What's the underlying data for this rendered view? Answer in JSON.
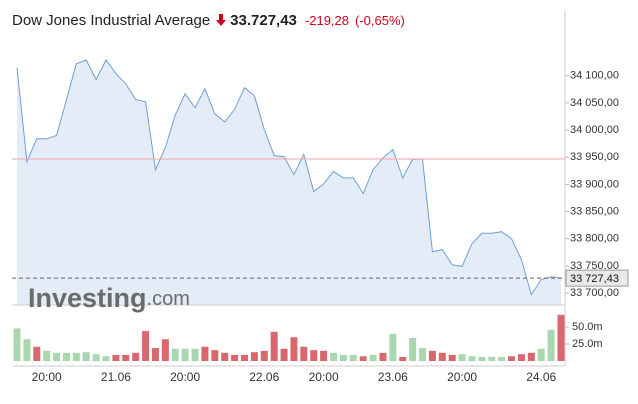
{
  "chart_data": [
    {
      "type": "line",
      "title": "Dow Jones Industrial Average",
      "price": "33.727,43",
      "change": "-219,28",
      "change_percent": "(-0,65%)",
      "watermark": [
        "Investing",
        ".com"
      ],
      "color": "#6f9fd1",
      "fill": "#e4edf7",
      "values": [
        34115,
        33942,
        33984,
        33984,
        33990,
        34056,
        34122,
        34129,
        34093,
        34129,
        34104,
        34085,
        34056,
        34052,
        33927,
        33968,
        34028,
        34067,
        34041,
        34076,
        34030,
        34015,
        34038,
        34078,
        34063,
        34001,
        33953,
        33951,
        33918,
        33955,
        33887,
        33901,
        33924,
        33912,
        33912,
        33883,
        33927,
        33949,
        33964,
        33912,
        33946,
        33947,
        33776,
        33780,
        33752,
        33749,
        33791,
        33810,
        33810,
        33813,
        33800,
        33762,
        33697,
        33725,
        33730,
        33727.43
      ],
      "reference_line": 33946.71,
      "reference_color": "#f2a5a5",
      "last_price": {
        "value": 33727.43,
        "label": "33 727,43"
      },
      "ylim": [
        33678,
        34175
      ],
      "yticks": [
        {
          "value": 33700,
          "label": "33 700,00"
        },
        {
          "value": 33750,
          "label": "33 750,00"
        },
        {
          "value": 33800,
          "label": "33 800,00"
        },
        {
          "value": 33850,
          "label": "33 850,00"
        },
        {
          "value": 33900,
          "label": "33 900,00"
        },
        {
          "value": 33950,
          "label": "33 950,00"
        },
        {
          "value": 34000,
          "label": "34 000,00"
        },
        {
          "value": 34050,
          "label": "34 050,00"
        },
        {
          "value": 34100,
          "label": "34 100,00"
        }
      ]
    },
    {
      "type": "bar",
      "categories": [
        null,
        null,
        null,
        "20:00",
        null,
        null,
        null,
        null,
        null,
        null,
        "21.06",
        null,
        null,
        null,
        null,
        null,
        null,
        "20:00",
        null,
        null,
        null,
        null,
        null,
        null,
        null,
        "22.06",
        null,
        null,
        null,
        null,
        null,
        "20:00",
        null,
        null,
        null,
        null,
        null,
        null,
        "23.06",
        null,
        null,
        null,
        null,
        null,
        null,
        "20:00",
        null,
        null,
        null,
        null,
        null,
        null,
        null,
        "24.06",
        null,
        null
      ],
      "values": [
        48,
        32,
        21,
        15,
        12,
        12,
        12,
        13,
        10,
        7,
        9,
        9,
        12,
        44,
        19,
        32,
        18,
        18,
        18,
        21,
        16,
        12,
        9,
        9,
        13,
        15,
        43,
        18,
        35,
        21,
        16,
        15,
        12,
        9,
        9,
        7,
        9,
        12,
        40,
        6,
        34,
        19,
        15,
        12,
        9,
        10,
        7,
        6,
        6,
        6,
        7,
        10,
        12,
        18,
        46,
        68
      ],
      "colors": [
        "#a9d8b0",
        "#a9d8b0",
        "#d9686e",
        "#a9d8b0",
        "#a9d8b0",
        "#a9d8b0",
        "#a9d8b0",
        "#a9d8b0",
        "#a9d8b0",
        "#a9d8b0",
        "#d9686e",
        "#d9686e",
        "#d9686e",
        "#d9686e",
        "#d9686e",
        "#d9686e",
        "#a9d8b0",
        "#a9d8b0",
        "#a9d8b0",
        "#d9686e",
        "#d9686e",
        "#d9686e",
        "#d9686e",
        "#d9686e",
        "#d9686e",
        "#d9686e",
        "#d9686e",
        "#d9686e",
        "#d9686e",
        "#d9686e",
        "#d9686e",
        "#d9686e",
        "#a9d8b0",
        "#a9d8b0",
        "#a9d8b0",
        "#d9686e",
        "#a9d8b0",
        "#d9686e",
        "#a9d8b0",
        "#d9686e",
        "#a9d8b0",
        "#a9d8b0",
        "#d9686e",
        "#d9686e",
        "#d9686e",
        "#a9d8b0",
        "#a9d8b0",
        "#a9d8b0",
        "#a9d8b0",
        "#a9d8b0",
        "#d9686e",
        "#d9686e",
        "#d9686e",
        "#a9d8b0",
        "#a9d8b0",
        "#d9686e"
      ],
      "ylim": [
        0,
        78
      ],
      "yticks": [
        {
          "value": 25,
          "label": "25.0m"
        },
        {
          "value": 50,
          "label": "50.0m"
        }
      ]
    }
  ]
}
